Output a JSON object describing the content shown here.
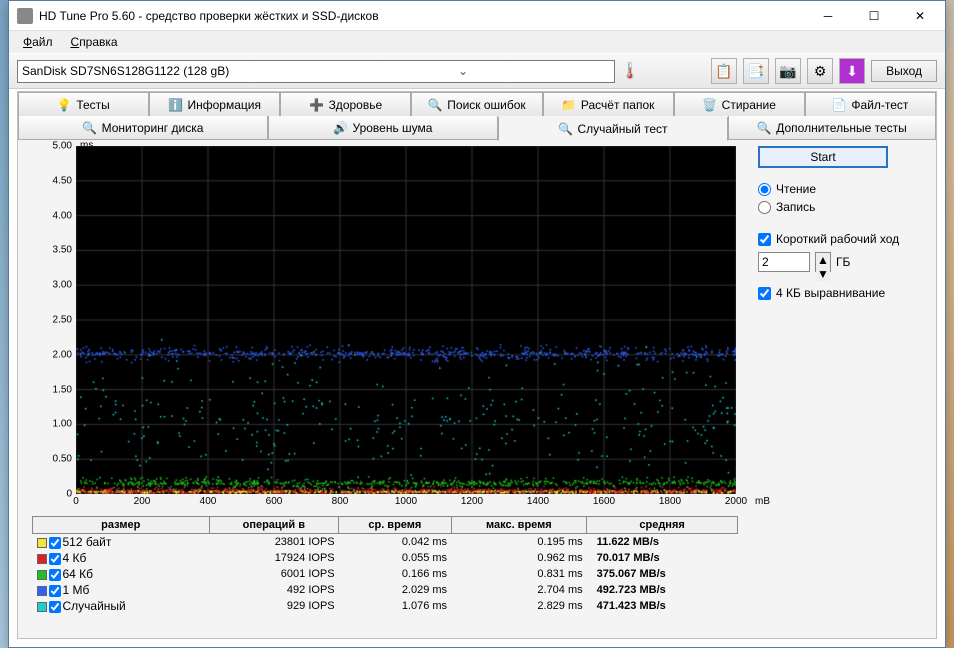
{
  "window": {
    "title": "HD Tune Pro 5.60 - средство проверки жёстких и SSD-дисков"
  },
  "menu": {
    "file": "Файл",
    "help": "Справка"
  },
  "toolbar": {
    "drive": "SanDisk SD7SN6S128G1122 (128 gB)",
    "exit": "Выход"
  },
  "tabs": {
    "tests": "Тесты",
    "info": "Информация",
    "health": "Здоровье",
    "errscan": "Поиск ошибок",
    "folder": "Расчёт папок",
    "erase": "Стирание",
    "filetest": "Файл-тест",
    "monitor": "Мониторинг диска",
    "noise": "Уровень шума",
    "random": "Случайный тест",
    "extra": "Дополнительные тесты"
  },
  "panel": {
    "start": "Start",
    "read": "Чтение",
    "write": "Запись",
    "shortStroke": "Короткий рабочий ход",
    "shortVal": "2",
    "gb": "ГБ",
    "align4k": "4 КБ выравнивание"
  },
  "chart": {
    "yunit": "ms",
    "xunit": "mB",
    "ylabels": [
      "5.00",
      "4.50",
      "4.00",
      "3.50",
      "3.00",
      "2.50",
      "2.00",
      "1.50",
      "1.00",
      "0.50",
      "0"
    ],
    "ymax": 5.0,
    "xlabels": [
      "0",
      "200",
      "400",
      "600",
      "800",
      "1000",
      "1200",
      "1400",
      "1600",
      "1800",
      "2000"
    ],
    "grid_color": "#333333",
    "series": [
      {
        "color": "#f5e43a",
        "y": 0.042,
        "spread": 0.03
      },
      {
        "color": "#e02020",
        "y": 0.055,
        "spread": 0.08
      },
      {
        "color": "#20c020",
        "y": 0.166,
        "spread": 0.1
      },
      {
        "color": "#3060ff",
        "y": 2.029,
        "spread": 0.15
      },
      {
        "color": "#20d0d0",
        "y": 1.076,
        "spread": 1.4
      }
    ]
  },
  "table": {
    "headers": [
      "размер",
      "операций в",
      "ср. время",
      "макс. время",
      "средняя"
    ],
    "rows": [
      {
        "color": "#f5e43a",
        "size": "512 байт",
        "iops": "23801 IOPS",
        "avg": "0.042 ms",
        "max": "0.195 ms",
        "speed": "11.622 MB/s"
      },
      {
        "color": "#e02020",
        "size": "4 Кб",
        "iops": "17924 IOPS",
        "avg": "0.055 ms",
        "max": "0.962 ms",
        "speed": "70.017 MB/s"
      },
      {
        "color": "#20c020",
        "size": "64 Кб",
        "iops": "6001 IOPS",
        "avg": "0.166 ms",
        "max": "0.831 ms",
        "speed": "375.067 MB/s"
      },
      {
        "color": "#3060ff",
        "size": "1 Мб",
        "iops": "492 IOPS",
        "avg": "2.029 ms",
        "max": "2.704 ms",
        "speed": "492.723 MB/s"
      },
      {
        "color": "#20d0d0",
        "size": "Случайный",
        "iops": "929 IOPS",
        "avg": "1.076 ms",
        "max": "2.829 ms",
        "speed": "471.423 MB/s"
      }
    ]
  }
}
